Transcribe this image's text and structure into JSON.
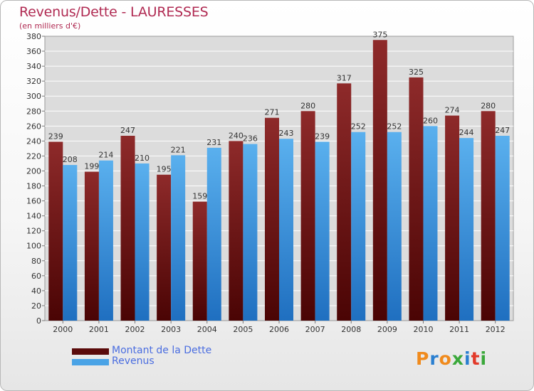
{
  "chart_data": {
    "type": "bar",
    "title": "Revenus/Dette - LAURESSES",
    "subtitle": "(en milliers d'€)",
    "categories": [
      "2000",
      "2001",
      "2002",
      "2003",
      "2004",
      "2005",
      "2006",
      "2007",
      "2008",
      "2009",
      "2010",
      "2011",
      "2012"
    ],
    "series": [
      {
        "name": "Montant de la Dette",
        "color": "#7b1a1a",
        "values": [
          239,
          199,
          247,
          195,
          159,
          240,
          271,
          280,
          317,
          375,
          325,
          274,
          280
        ]
      },
      {
        "name": "Revenus",
        "color": "#4aa3e6",
        "values": [
          208,
          214,
          210,
          221,
          231,
          236,
          243,
          239,
          252,
          252,
          260,
          244,
          247
        ]
      }
    ],
    "ylim": [
      0,
      380
    ],
    "yticks": [
      0,
      20,
      40,
      60,
      80,
      100,
      120,
      140,
      160,
      180,
      200,
      220,
      240,
      260,
      280,
      300,
      320,
      340,
      360,
      380
    ],
    "grid": true,
    "legend": "bottom-left",
    "xlabel": "",
    "ylabel": ""
  },
  "logo": {
    "letters": [
      "P",
      "r",
      "o",
      "x",
      "i",
      "t",
      "i"
    ],
    "colors": [
      "#f08a1c",
      "#2a7fd0",
      "#f08a1c",
      "#3aa83a",
      "#2a7fd0",
      "#e23a2a",
      "#3aa83a"
    ]
  }
}
